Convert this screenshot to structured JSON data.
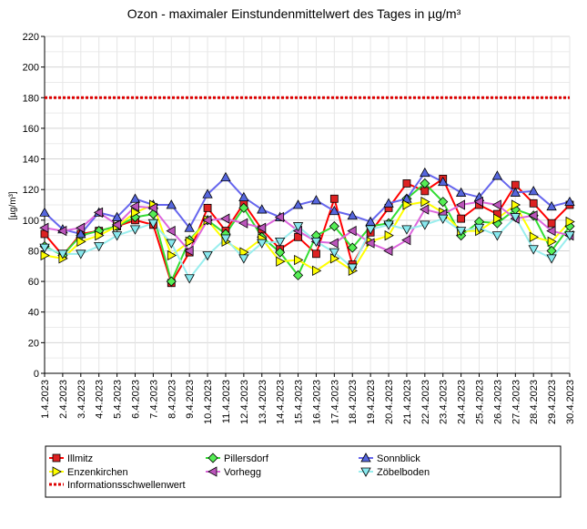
{
  "chart_data": {
    "type": "line",
    "title": "Ozon -  maximaler Einstundenmittelwert des Tages in µg/m³",
    "xlabel": "",
    "ylabel": "[µg/m³]",
    "ylim": [
      0,
      220
    ],
    "yticks": [
      0,
      20,
      40,
      60,
      80,
      100,
      120,
      140,
      160,
      180,
      200,
      220
    ],
    "grid": true,
    "legend_position": "bottom",
    "categories": [
      "1.4.2023",
      "2.4.2023",
      "3.4.2023",
      "4.4.2023",
      "5.4.2023",
      "6.4.2023",
      "7.4.2023",
      "8.4.2023",
      "9.4.2023",
      "10.4.2023",
      "11.4.2023",
      "12.4.2023",
      "13.4.2023",
      "14.4.2023",
      "15.4.2023",
      "16.4.2023",
      "17.4.2023",
      "18.4.2023",
      "19.4.2023",
      "20.4.2023",
      "21.4.2023",
      "22.4.2023",
      "23.4.2023",
      "24.4.2023",
      "25.4.2023",
      "26.4.2023",
      "27.4.2023",
      "28.4.2023",
      "29.4.2023",
      "30.4.2023"
    ],
    "series": [
      {
        "name": "Illmitz",
        "color": "#ff0000",
        "marker": "square",
        "fill": "#dd2222",
        "values": [
          91,
          77,
          91,
          93,
          96,
          100,
          97,
          59,
          79,
          108,
          93,
          111,
          94,
          81,
          89,
          78,
          114,
          71,
          92,
          108,
          124,
          119,
          127,
          101,
          110,
          104,
          123,
          111,
          98,
          110
        ]
      },
      {
        "name": "Pillersdorf",
        "color": "#33dd33",
        "marker": "diamond",
        "fill": "#55ee55",
        "values": [
          83,
          77,
          90,
          93,
          96,
          102,
          104,
          60,
          87,
          100,
          91,
          108,
          89,
          79,
          64,
          90,
          96,
          82,
          96,
          98,
          114,
          124,
          112,
          90,
          99,
          98,
          107,
          103,
          80,
          96
        ]
      },
      {
        "name": "Sonnblick",
        "color": "#6666ee",
        "marker": "triangle-up",
        "fill": "#5566dd",
        "values": [
          105,
          94,
          91,
          105,
          102,
          114,
          110,
          110,
          95,
          117,
          128,
          115,
          107,
          102,
          110,
          113,
          106,
          103,
          99,
          111,
          114,
          131,
          125,
          118,
          115,
          129,
          118,
          119,
          109,
          112
        ]
      },
      {
        "name": "Enzenkirchen",
        "color": "#ffff00",
        "marker": "triangle-right",
        "fill": "#ffff00",
        "values": [
          77,
          75,
          86,
          90,
          96,
          105,
          110,
          77,
          86,
          100,
          86,
          79,
          88,
          73,
          74,
          67,
          75,
          67,
          86,
          90,
          110,
          112,
          105,
          93,
          93,
          101,
          110,
          89,
          86,
          99
        ]
      },
      {
        "name": "Vorhegg",
        "color": "#dd66dd",
        "marker": "triangle-left",
        "fill": "#bb55bb",
        "values": [
          95,
          93,
          95,
          105,
          97,
          109,
          108,
          93,
          80,
          100,
          101,
          98,
          95,
          102,
          93,
          86,
          85,
          93,
          85,
          80,
          87,
          107,
          104,
          110,
          112,
          110,
          101,
          103,
          93,
          90
        ]
      },
      {
        "name": "Zöbelboden",
        "color": "#99eeee",
        "marker": "triangle-down",
        "fill": "#88e8ee",
        "values": [
          82,
          78,
          78,
          83,
          90,
          94,
          98,
          85,
          62,
          77,
          88,
          75,
          85,
          86,
          96,
          86,
          79,
          69,
          94,
          97,
          94,
          97,
          101,
          93,
          95,
          90,
          102,
          81,
          75,
          90
        ]
      }
    ],
    "threshold": {
      "name": "Informationsschwellenwert",
      "value": 180,
      "color": "#dd0000"
    }
  }
}
